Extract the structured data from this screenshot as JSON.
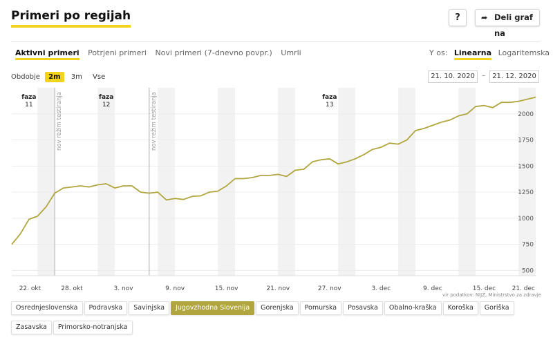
{
  "header": {
    "title": "Primeri po regijah",
    "help_label": "?",
    "share_label": "Deli graf na",
    "share_icon": "share-arrow-icon"
  },
  "tabs": [
    {
      "label": "Aktivni primeri",
      "active": true
    },
    {
      "label": "Potrjeni primeri",
      "active": false
    },
    {
      "label": "Novi primeri (7-dnevno povpr.)",
      "active": false
    },
    {
      "label": "Umrli",
      "active": false
    }
  ],
  "yaxis_switch": {
    "label": "Y os:",
    "options": [
      {
        "label": "Linearna",
        "selected": true
      },
      {
        "label": "Logaritemska",
        "selected": false
      }
    ]
  },
  "period": {
    "label": "Obdobje",
    "options": [
      {
        "label": "2m",
        "selected": true
      },
      {
        "label": "3m",
        "selected": false
      },
      {
        "label": "Vse",
        "selected": false
      }
    ]
  },
  "date_range": {
    "from": "21. 10. 2020",
    "separator": "–",
    "to": "21. 12. 2020"
  },
  "source_note": "vir podatkov: NIJZ, Ministrstvo za zdravje",
  "regions": [
    {
      "label": "Osrednjeslovenska",
      "selected": false
    },
    {
      "label": "Podravska",
      "selected": false
    },
    {
      "label": "Savinjska",
      "selected": false
    },
    {
      "label": "Jugovzhodna Slovenija",
      "selected": true
    },
    {
      "label": "Gorenjska",
      "selected": false
    },
    {
      "label": "Pomurska",
      "selected": false
    },
    {
      "label": "Posavska",
      "selected": false
    },
    {
      "label": "Obalno-kraška",
      "selected": false
    },
    {
      "label": "Koroška",
      "selected": false
    },
    {
      "label": "Goriška",
      "selected": false
    },
    {
      "label": "Zasavska",
      "selected": false
    },
    {
      "label": "Primorsko-notranjska",
      "selected": false
    }
  ],
  "colors": {
    "line": "#b0a53e",
    "accent": "#f2d21b",
    "weekend_band": "#f2f2f2",
    "marker": "#aaaaaa"
  },
  "chart_data": {
    "type": "line",
    "series": [
      {
        "name": "Jugovzhodna Slovenija",
        "x": [
          "2020-10-21",
          "2020-10-22",
          "2020-10-23",
          "2020-10-24",
          "2020-10-25",
          "2020-10-26",
          "2020-10-27",
          "2020-10-28",
          "2020-10-29",
          "2020-10-30",
          "2020-10-31",
          "2020-11-01",
          "2020-11-02",
          "2020-11-03",
          "2020-11-04",
          "2020-11-05",
          "2020-11-06",
          "2020-11-07",
          "2020-11-08",
          "2020-11-09",
          "2020-11-10",
          "2020-11-11",
          "2020-11-12",
          "2020-11-13",
          "2020-11-14",
          "2020-11-15",
          "2020-11-16",
          "2020-11-17",
          "2020-11-18",
          "2020-11-19",
          "2020-11-20",
          "2020-11-21",
          "2020-11-22",
          "2020-11-23",
          "2020-11-24",
          "2020-11-25",
          "2020-11-26",
          "2020-11-27",
          "2020-11-28",
          "2020-11-29",
          "2020-11-30",
          "2020-12-01",
          "2020-12-02",
          "2020-12-03",
          "2020-12-04",
          "2020-12-05",
          "2020-12-06",
          "2020-12-07",
          "2020-12-08",
          "2020-12-09",
          "2020-12-10",
          "2020-12-11",
          "2020-12-12",
          "2020-12-13",
          "2020-12-14",
          "2020-12-15",
          "2020-12-16",
          "2020-12-17",
          "2020-12-18",
          "2020-12-19",
          "2020-12-20",
          "2020-12-21"
        ],
        "values": [
          750,
          850,
          990,
          1020,
          1110,
          1240,
          1290,
          1300,
          1310,
          1300,
          1320,
          1330,
          1290,
          1310,
          1310,
          1250,
          1240,
          1250,
          1175,
          1190,
          1180,
          1210,
          1215,
          1250,
          1260,
          1310,
          1380,
          1380,
          1390,
          1410,
          1410,
          1420,
          1400,
          1460,
          1470,
          1540,
          1560,
          1570,
          1520,
          1540,
          1570,
          1610,
          1660,
          1680,
          1720,
          1710,
          1750,
          1840,
          1860,
          1890,
          1920,
          1940,
          1980,
          2000,
          2070,
          2080,
          2060,
          2110,
          2110,
          2120,
          2140,
          2160
        ]
      }
    ],
    "x_tick_labels": [
      "22. okt",
      "28. okt",
      "3. nov",
      "9. nov",
      "15. nov",
      "21. nov",
      "27. nov",
      "3. dec",
      "9. dec",
      "15. dec",
      "21. dec"
    ],
    "x_tick_dates": [
      "2020-10-22",
      "2020-10-28",
      "2020-11-03",
      "2020-11-09",
      "2020-11-15",
      "2020-11-21",
      "2020-11-27",
      "2020-12-03",
      "2020-12-09",
      "2020-12-15",
      "2020-12-21"
    ],
    "y_ticks": [
      500,
      750,
      1000,
      1250,
      1500,
      1750,
      2000
    ],
    "ylim": [
      450,
      2250
    ],
    "xlim": [
      "2020-10-21",
      "2020-12-21"
    ],
    "weekend_bands": [
      [
        "2020-10-24",
        "2020-10-26"
      ],
      [
        "2020-10-31",
        "2020-11-02"
      ],
      [
        "2020-11-07",
        "2020-11-09"
      ],
      [
        "2020-11-14",
        "2020-11-16"
      ],
      [
        "2020-11-21",
        "2020-11-23"
      ],
      [
        "2020-11-28",
        "2020-11-30"
      ],
      [
        "2020-12-05",
        "2020-12-07"
      ],
      [
        "2020-12-12",
        "2020-12-14"
      ],
      [
        "2020-12-19",
        "2020-12-21"
      ]
    ],
    "phase_labels": [
      {
        "label": "faza",
        "number": "11",
        "date": "2020-10-23"
      },
      {
        "label": "faza",
        "number": "12",
        "date": "2020-11-01"
      },
      {
        "label": "faza",
        "number": "13",
        "date": "2020-11-27"
      }
    ],
    "marker_lines": [
      {
        "label": "nov režim testiranja",
        "date": "2020-10-26"
      },
      {
        "label": "nov režim testiranja",
        "date": "2020-11-06"
      }
    ],
    "grid": true
  }
}
